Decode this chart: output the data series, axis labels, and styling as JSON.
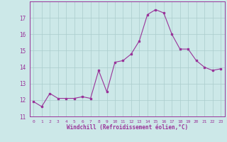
{
  "x": [
    0,
    1,
    2,
    3,
    4,
    5,
    6,
    7,
    8,
    9,
    10,
    11,
    12,
    13,
    14,
    15,
    16,
    17,
    18,
    19,
    20,
    21,
    22,
    23
  ],
  "y": [
    11.9,
    11.6,
    12.4,
    12.1,
    12.1,
    12.1,
    12.2,
    12.1,
    13.8,
    12.5,
    14.3,
    14.4,
    14.8,
    15.6,
    17.2,
    17.5,
    17.3,
    16.0,
    15.1,
    15.1,
    14.4,
    14.0,
    13.8,
    13.9
  ],
  "color": "#993399",
  "bg_color": "#cce8e8",
  "grid_color": "#aacccc",
  "ylim": [
    11,
    18
  ],
  "yticks": [
    11,
    12,
    13,
    14,
    15,
    16,
    17
  ],
  "xlabel": "Windchill (Refroidissement éolien,°C)",
  "figsize": [
    3.2,
    2.0
  ],
  "dpi": 100
}
